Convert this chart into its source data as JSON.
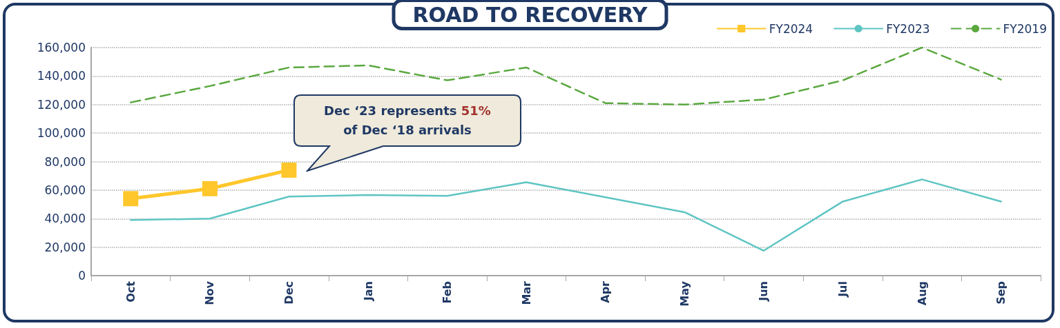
{
  "chart_data": {
    "type": "line",
    "title": "ROAD TO RECOVERY",
    "categories": [
      "Oct",
      "Nov",
      "Dec",
      "Jan",
      "Feb",
      "Mar",
      "Apr",
      "May",
      "Jun",
      "Jul",
      "Aug",
      "Sep"
    ],
    "series": [
      {
        "name": "FY2024",
        "color": "#ffc72c",
        "marker": "square",
        "values": [
          54000,
          61000,
          74000,
          null,
          null,
          null,
          null,
          null,
          null,
          null,
          null,
          null
        ]
      },
      {
        "name": "FY2023",
        "color": "#5ec5c3",
        "values": [
          39000,
          40000,
          55500,
          56500,
          56000,
          65500,
          55000,
          44500,
          17500,
          52000,
          67500,
          52000
        ]
      },
      {
        "name": "FY2019",
        "color": "#5aa83f",
        "line_style": "dashed",
        "values": [
          121500,
          133000,
          146000,
          147500,
          137000,
          146000,
          121000,
          120000,
          123500,
          137000,
          160000,
          137500
        ]
      }
    ],
    "ylim": [
      0,
      160000
    ],
    "yticks": [
      0,
      {
        "value": 20000,
        "label": "20,000"
      },
      {
        "value": 40000,
        "label": "40,000"
      },
      {
        "value": 60000,
        "label": "60,000"
      },
      {
        "value": 80000,
        "label": "80,000"
      },
      {
        "value": 100000,
        "label": "100,000"
      },
      {
        "value": 120000,
        "label": "120,000"
      },
      {
        "value": 140000,
        "label": "140,000"
      },
      {
        "value": 160000,
        "label": "160,000"
      }
    ],
    "grid": "y",
    "legend": "top right",
    "annotations": [
      "Dec ‘23 represents 51% of Dec ‘18 arrivals"
    ]
  }
}
